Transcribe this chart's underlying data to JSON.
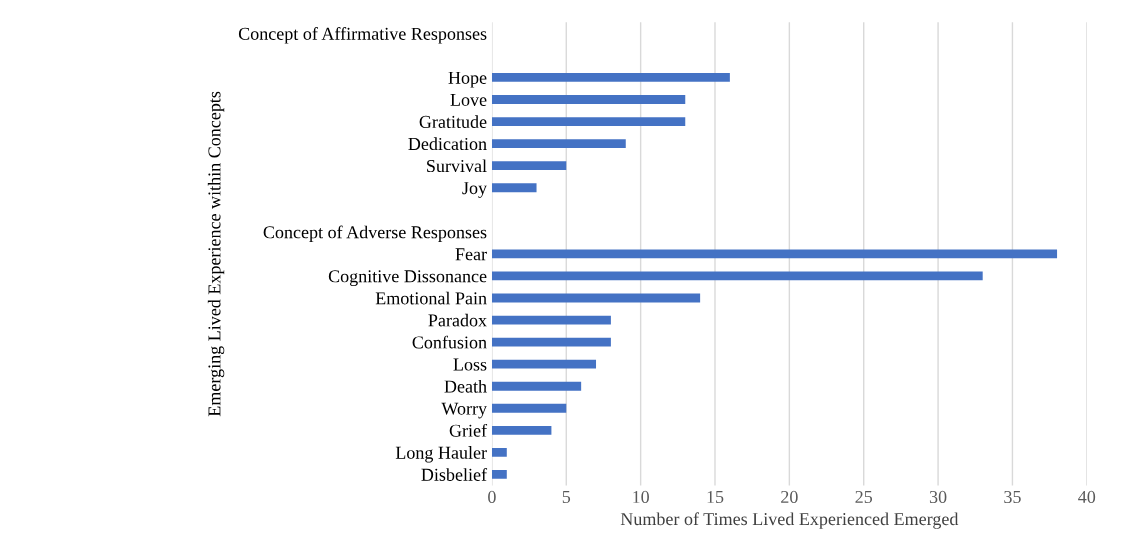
{
  "chart_data": {
    "type": "bar",
    "orientation": "horizontal",
    "xlabel": "Number of Times Lived Experienced Emerged",
    "ylabel": "Emerging Lived Experience within Concepts",
    "categories": [
      "Concept of Affirmative Responses",
      null,
      "Hope",
      "Love",
      "Gratitude",
      "Dedication",
      "Survival",
      "Joy",
      null,
      "Concept of Adverse Responses",
      "Fear",
      "Cognitive Dissonance",
      "Emotional Pain",
      "Paradox",
      "Confusion",
      "Loss",
      "Death",
      "Worry",
      "Grief",
      "Long Hauler",
      "Disbelief"
    ],
    "values": [
      null,
      null,
      16,
      13,
      13,
      9,
      5,
      3,
      null,
      null,
      38,
      33,
      14,
      8,
      8,
      7,
      6,
      5,
      4,
      1,
      1
    ],
    "color": "#4472c4",
    "xlim": [
      0,
      40
    ],
    "xticks": [
      0,
      5,
      10,
      15,
      20,
      25,
      30,
      35,
      40
    ],
    "grid": "x",
    "legend": false
  }
}
